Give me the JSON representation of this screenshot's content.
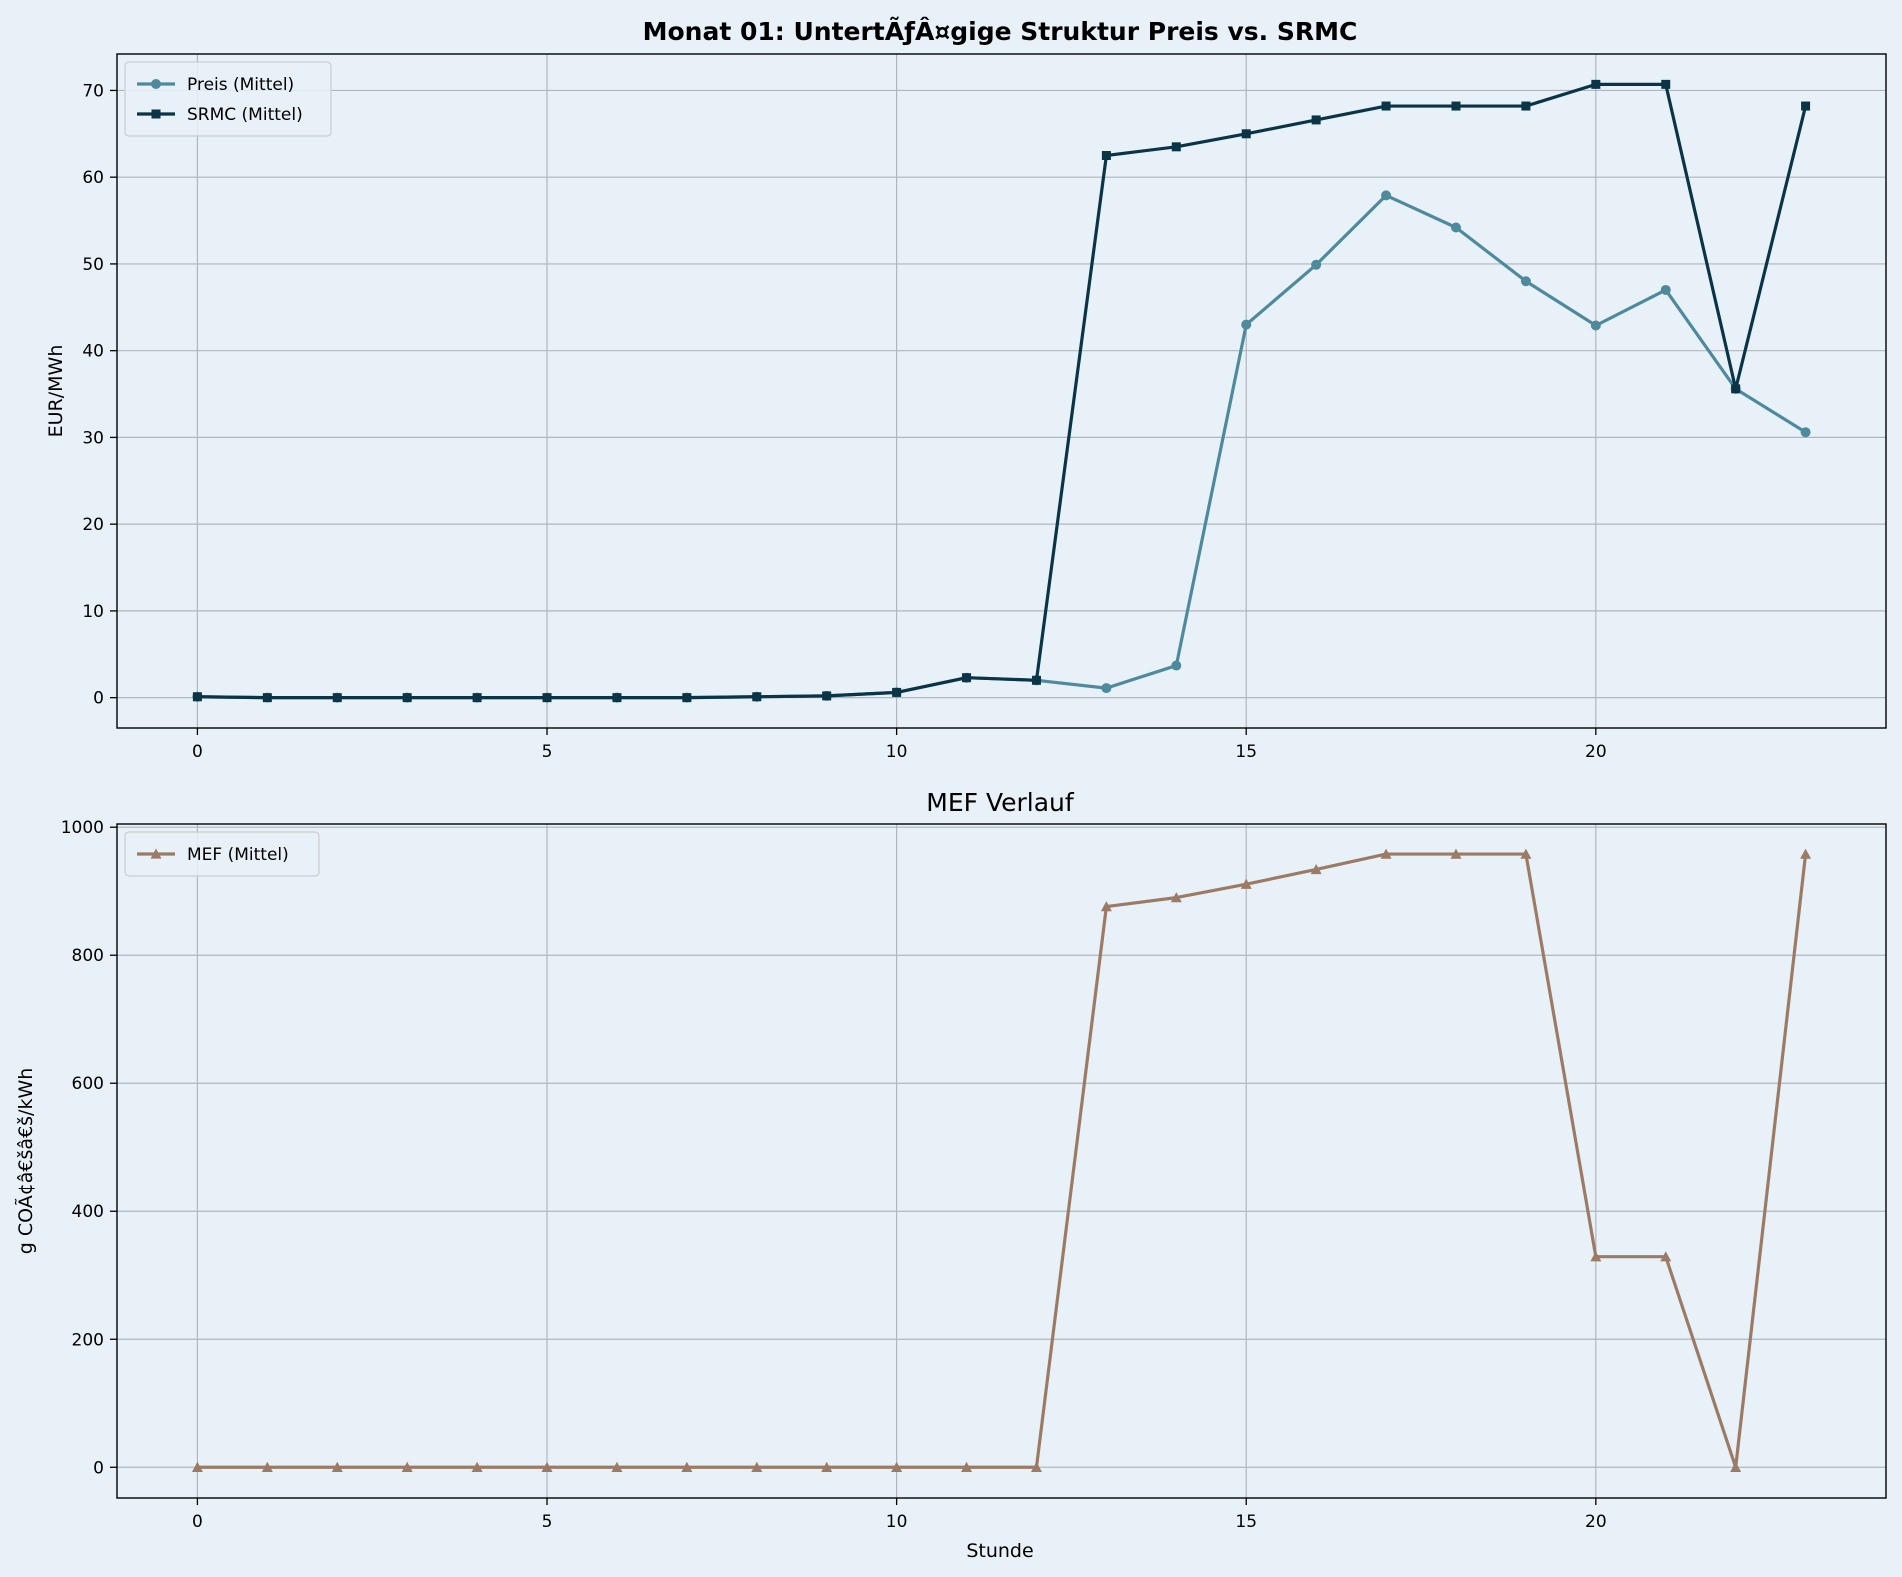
{
  "chart_data": [
    {
      "type": "line",
      "title": "Monat 01: UntertÃƒÂ¤gige Struktur Preis vs. SRMC",
      "xlabel": "",
      "ylabel": "EUR/MWh",
      "xlim": [
        -1.15,
        24.15
      ],
      "ylim": [
        -3.5,
        74.2
      ],
      "xticks": [
        0,
        5,
        10,
        15,
        20
      ],
      "yticks": [
        0,
        10,
        20,
        30,
        40,
        50,
        60,
        70
      ],
      "grid": true,
      "legend": "top-left",
      "x": [
        0,
        1,
        2,
        3,
        4,
        5,
        6,
        7,
        8,
        9,
        10,
        11,
        12,
        13,
        14,
        15,
        16,
        17,
        18,
        19,
        20,
        21,
        22,
        23
      ],
      "series": [
        {
          "name": "Preis (Mittel)",
          "color": "#4f8a9c",
          "marker": "circle",
          "values": [
            0.1,
            0.0,
            0.0,
            0.0,
            0.0,
            0.0,
            0.0,
            0.0,
            0.1,
            0.2,
            0.6,
            2.3,
            2.0,
            1.1,
            3.7,
            43.0,
            49.9,
            57.9,
            54.2,
            48.0,
            42.9,
            47.0,
            35.6,
            30.6
          ]
        },
        {
          "name": "SRMC (Mittel)",
          "color": "#0b3547",
          "marker": "square",
          "values": [
            0.1,
            0.0,
            0.0,
            0.0,
            0.0,
            0.0,
            0.0,
            0.0,
            0.1,
            0.2,
            0.6,
            2.3,
            2.0,
            62.5,
            63.5,
            65.0,
            66.6,
            68.2,
            68.2,
            68.2,
            70.7,
            70.7,
            35.6,
            68.2
          ]
        }
      ]
    },
    {
      "type": "line",
      "title": "MEF Verlauf",
      "xlabel": "Stunde",
      "ylabel": "g COÃ¢â€šâ€š/kWh",
      "xlim": [
        -1.15,
        24.15
      ],
      "ylim": [
        -48,
        1005
      ],
      "xticks": [
        0,
        5,
        10,
        15,
        20
      ],
      "yticks": [
        0,
        200,
        400,
        600,
        800,
        1000
      ],
      "grid": true,
      "legend": "top-left",
      "x": [
        0,
        1,
        2,
        3,
        4,
        5,
        6,
        7,
        8,
        9,
        10,
        11,
        12,
        13,
        14,
        15,
        16,
        17,
        18,
        19,
        20,
        21,
        22,
        23
      ],
      "series": [
        {
          "name": "MEF (Mittel)",
          "color": "#9c7b66",
          "marker": "triangle",
          "values": [
            0,
            0,
            0,
            0,
            0,
            0,
            0,
            0,
            0,
            0,
            0,
            0,
            0,
            876,
            890,
            911,
            934,
            958,
            958,
            958,
            329,
            329,
            0,
            958
          ]
        }
      ]
    }
  ]
}
